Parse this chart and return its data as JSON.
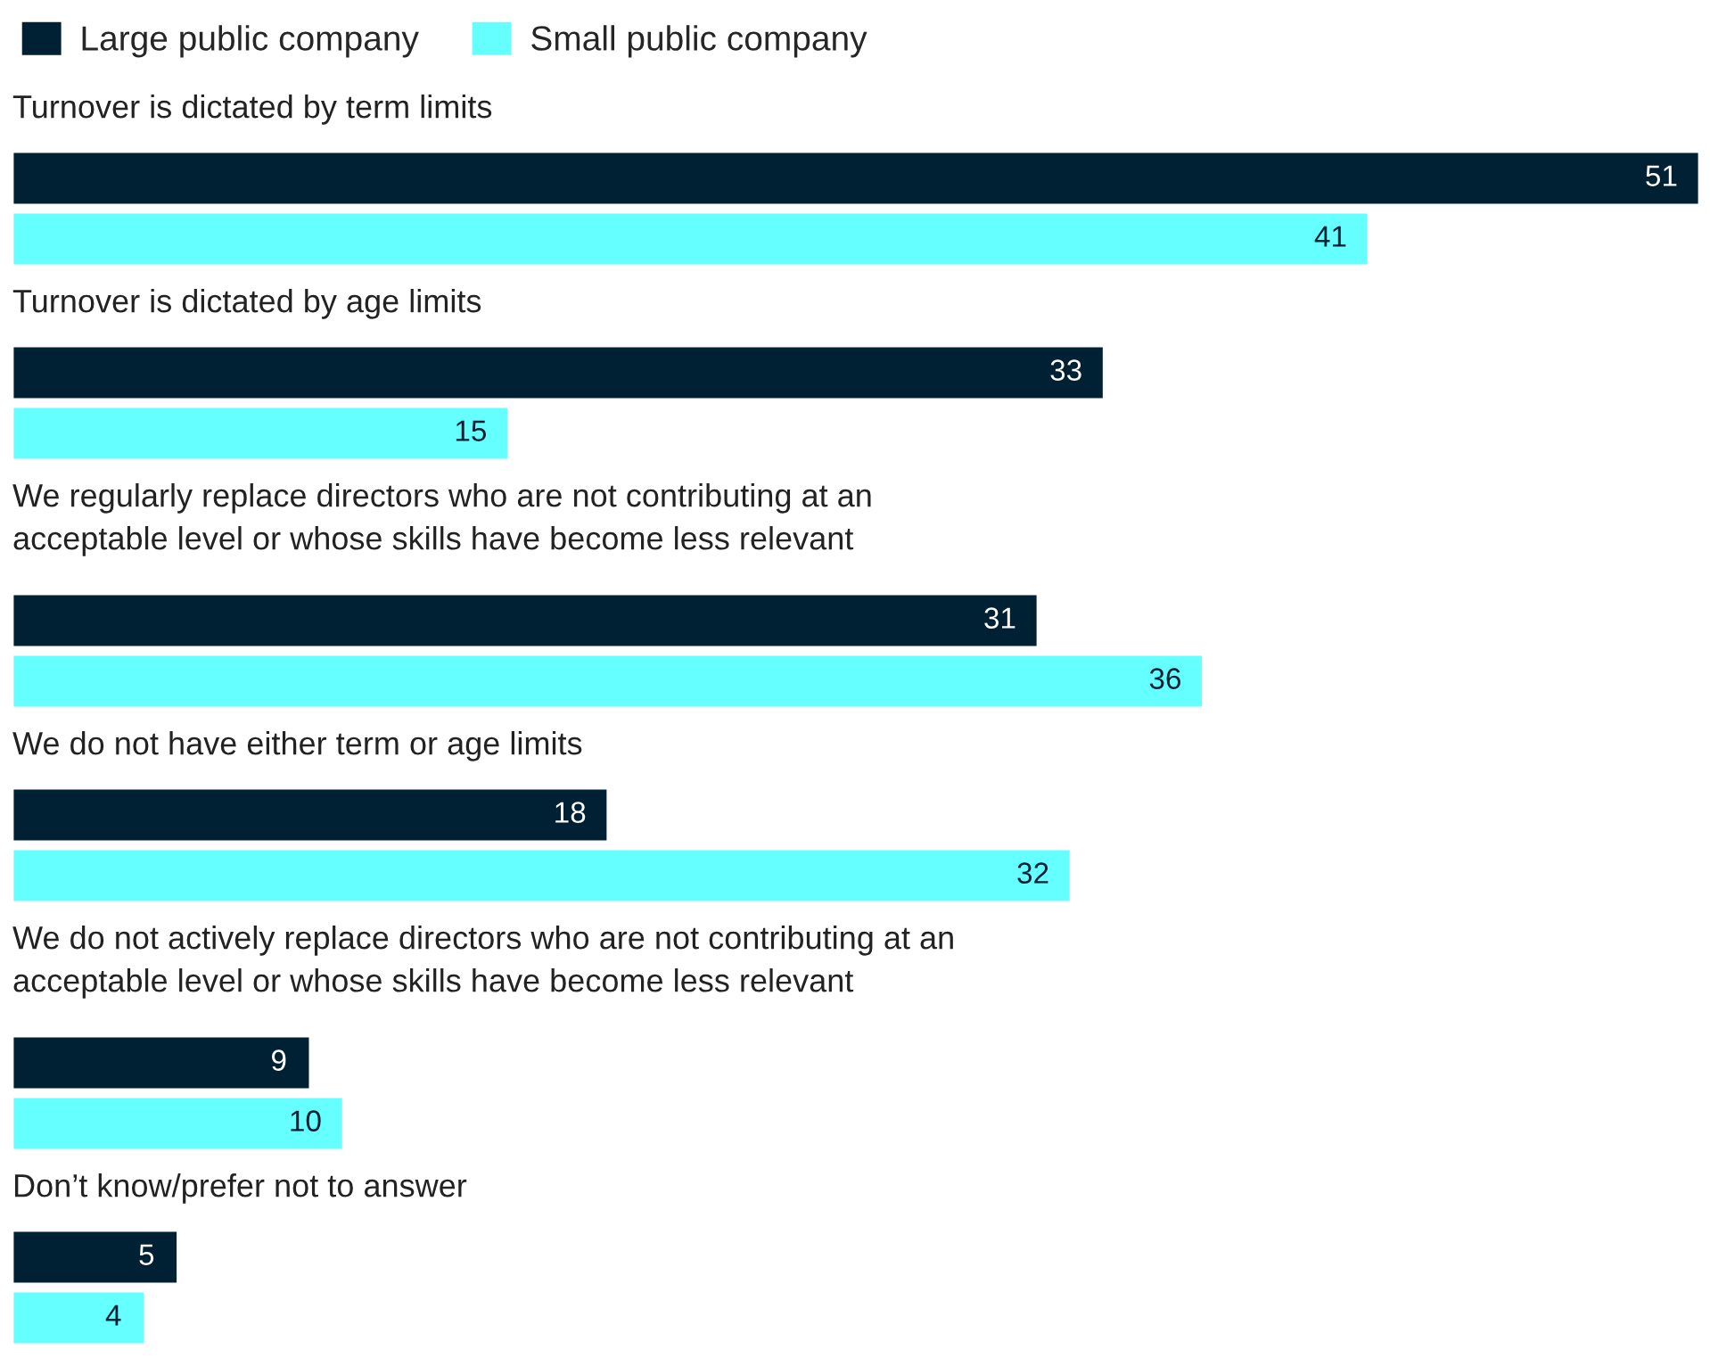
{
  "chart_data": {
    "type": "bar",
    "orientation": "horizontal",
    "data_labels": true,
    "legend": "top left",
    "categories": [
      "Turnover is dictated by term limits",
      "Turnover is dictated by age limits",
      "We regularly replace directors who are not contributing at an\nacceptable level or whose skills have become less relevant",
      "We do not have either term or age limits",
      "We do not actively replace directors who are not contributing at an\nacceptable level or whose skills have become less relevant",
      "Don’t know/prefer not to answer"
    ],
    "series": [
      {
        "name": "Large public company",
        "color": "#002033",
        "values": [
          51,
          33,
          31,
          18,
          9,
          5
        ]
      },
      {
        "name": "Small public company",
        "color": "#66ffff",
        "values": [
          41,
          15,
          36,
          32,
          10,
          4
        ]
      }
    ]
  }
}
